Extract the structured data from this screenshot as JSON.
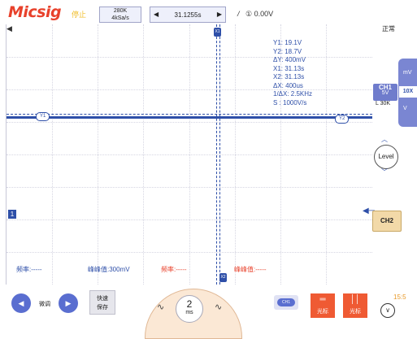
{
  "header": {
    "brand": "Micsig",
    "run_status": "停止",
    "memory_depth": "280K",
    "sample_rate": "4kSa/s",
    "horizontal_position": "31.1255s",
    "trigger_source": "①",
    "trigger_level": "0.00V",
    "acquire_mode": "正常"
  },
  "waveform": {
    "y1_tag": "Y1",
    "y2_tag": "Y2",
    "x1_tag": "X1",
    "x2_tag": "X2",
    "channel_marker": "1"
  },
  "cursor_readout": {
    "y1": "Y1: 19.1V",
    "y2": "Y2: 18.7V",
    "dy": "ΔY: 400mV",
    "x1": "X1: 31.13s",
    "x2": "X2: 31.13s",
    "dx": "ΔX: 400us",
    "inv_dx": "1/ΔX: 2.5KHz",
    "slope": "S : 1000V/s"
  },
  "measurements": {
    "freq1": "频率:-----",
    "pkpk1": "峰峰值:300mV",
    "freq2": "频率:-----",
    "pkpk2": "峰峰值:-----"
  },
  "right_panel": {
    "ch1_label": "CH1",
    "ch1_scale": "5V",
    "coupling": "L 30K",
    "side_top": "mV",
    "side_sel": "10X",
    "side_bottom": "V",
    "level_label": "Level",
    "ch2_label": "CH2"
  },
  "bottom": {
    "fine_label": "微调",
    "quick_save_1": "快速",
    "quick_save_2": "保存",
    "timebase_value": "2",
    "timebase_unit": "ms",
    "ch1_mini": "CH1",
    "cursor_label_1": "光标",
    "cursor_label_2": "光标",
    "clock": "15:5"
  },
  "colors": {
    "brand": "#e8412b",
    "trace": "#2e4fa8",
    "accent": "#ef5a33"
  }
}
